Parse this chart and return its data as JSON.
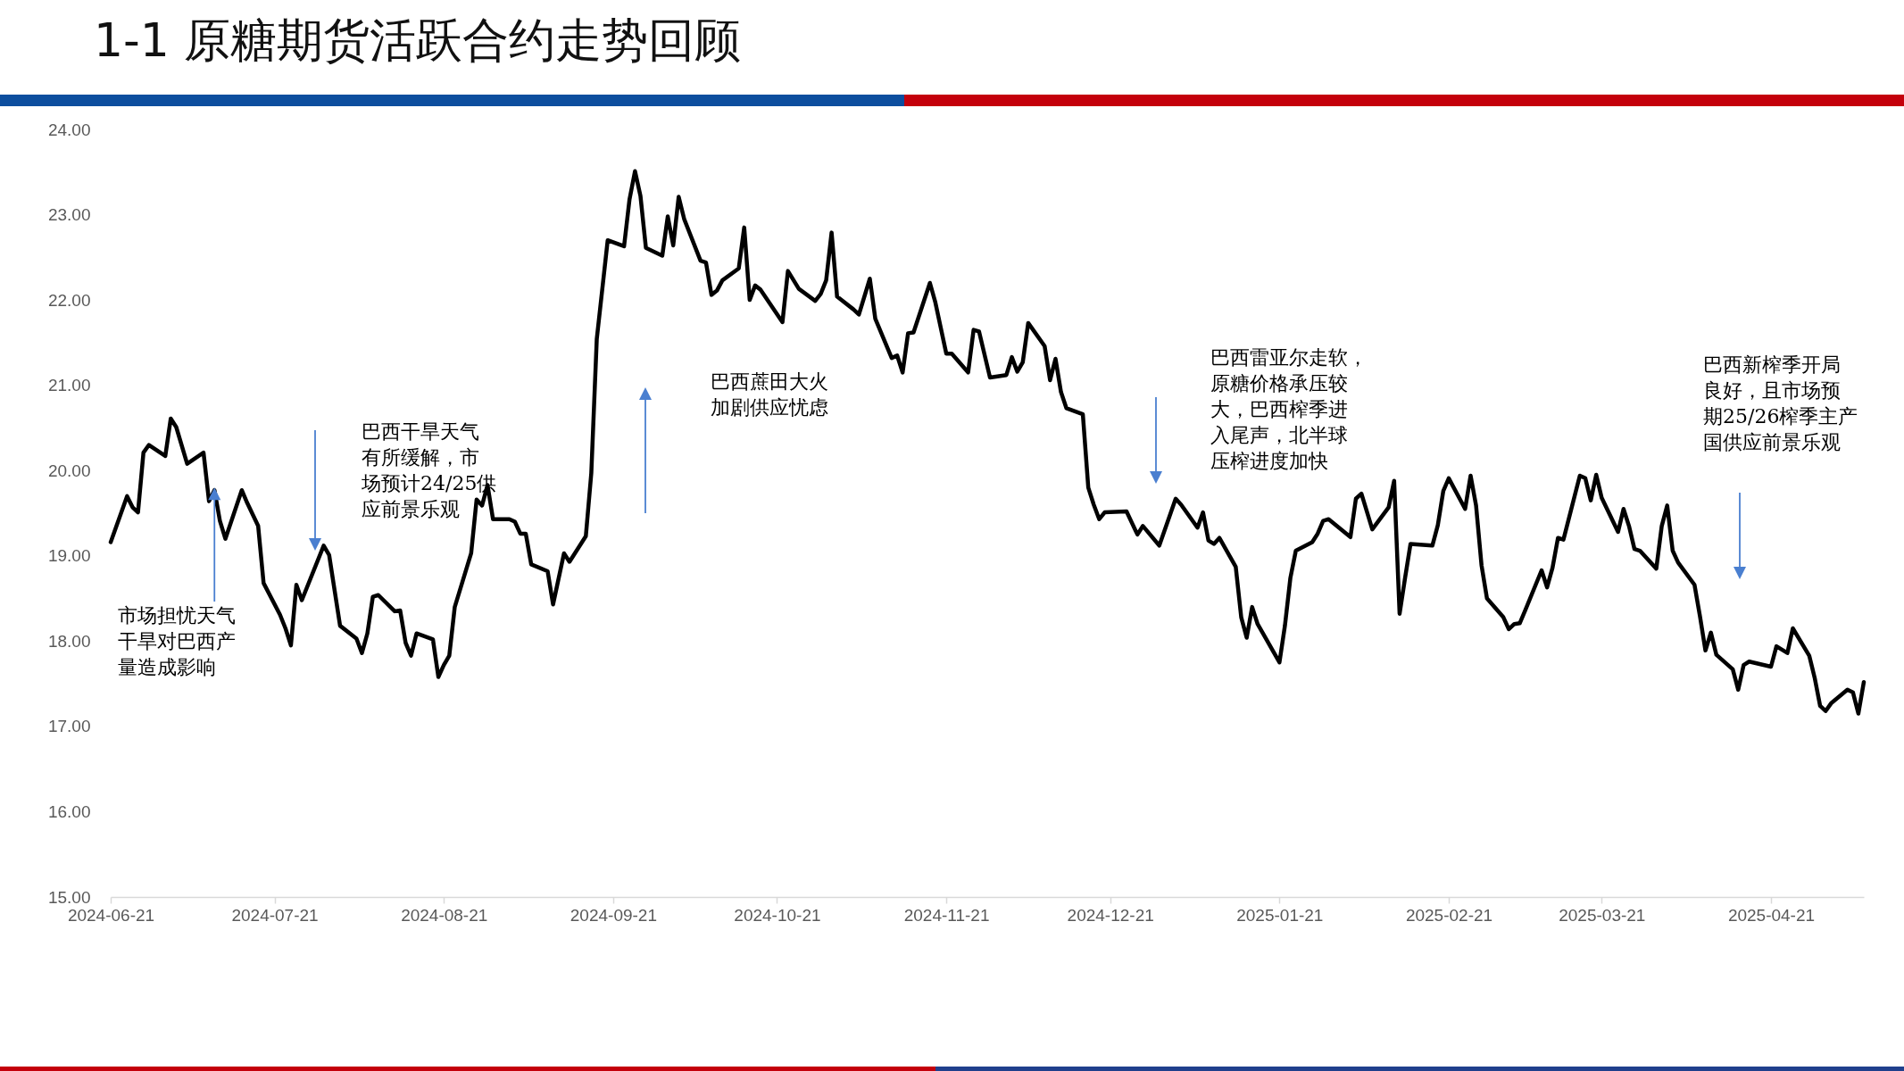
{
  "chart_data": {
    "type": "line",
    "title": "1-1 原糖期货活跃合约走势回顾",
    "color": "#000000",
    "x": [
      "2024-06-21",
      "2024-06-24",
      "2024-06-25",
      "2024-06-26",
      "2024-06-27",
      "2024-06-28",
      "2024-07-01",
      "2024-07-02",
      "2024-07-03",
      "2024-07-05",
      "2024-07-08",
      "2024-07-09",
      "2024-07-10",
      "2024-07-11",
      "2024-07-12",
      "2024-07-15",
      "2024-07-16",
      "2024-07-18",
      "2024-07-19",
      "2024-07-22",
      "2024-07-23",
      "2024-07-24",
      "2024-07-25",
      "2024-07-26",
      "2024-07-30",
      "2024-07-31",
      "2024-08-02",
      "2024-08-05",
      "2024-08-06",
      "2024-08-07",
      "2024-08-08",
      "2024-08-09",
      "2024-08-12",
      "2024-08-13",
      "2024-08-14",
      "2024-08-15",
      "2024-08-16",
      "2024-08-19",
      "2024-08-20",
      "2024-08-21",
      "2024-08-22",
      "2024-08-23",
      "2024-08-26",
      "2024-08-27",
      "2024-08-28",
      "2024-08-29",
      "2024-08-30",
      "2024-09-02",
      "2024-09-03",
      "2024-09-04",
      "2024-09-05",
      "2024-09-06",
      "2024-09-09",
      "2024-09-10",
      "2024-09-12",
      "2024-09-13",
      "2024-09-16",
      "2024-09-17",
      "2024-09-18",
      "2024-09-20",
      "2024-09-23",
      "2024-09-24",
      "2024-09-25",
      "2024-09-26",
      "2024-09-27",
      "2024-09-30",
      "2024-10-01",
      "2024-10-02",
      "2024-10-03",
      "2024-10-04",
      "2024-10-07",
      "2024-10-08",
      "2024-10-09",
      "2024-10-10",
      "2024-10-11",
      "2024-10-14",
      "2024-10-15",
      "2024-10-16",
      "2024-10-17",
      "2024-10-18",
      "2024-10-22",
      "2024-10-23",
      "2024-10-25",
      "2024-10-28",
      "2024-10-29",
      "2024-10-30",
      "2024-10-31",
      "2024-11-01",
      "2024-11-04",
      "2024-11-05",
      "2024-11-07",
      "2024-11-08",
      "2024-11-11",
      "2024-11-12",
      "2024-11-13",
      "2024-11-14",
      "2024-11-15",
      "2024-11-18",
      "2024-11-19",
      "2024-11-21",
      "2024-11-22",
      "2024-11-25",
      "2024-11-26",
      "2024-11-27",
      "2024-11-29",
      "2024-12-02",
      "2024-12-03",
      "2024-12-04",
      "2024-12-05",
      "2024-12-06",
      "2024-12-09",
      "2024-12-10",
      "2024-12-11",
      "2024-12-12",
      "2024-12-13",
      "2024-12-16",
      "2024-12-17",
      "2024-12-18",
      "2024-12-19",
      "2024-12-20",
      "2024-12-24",
      "2024-12-26",
      "2024-12-27",
      "2024-12-30",
      "2025-01-02",
      "2025-01-03",
      "2025-01-06",
      "2025-01-07",
      "2025-01-08",
      "2025-01-09",
      "2025-01-10",
      "2025-01-13",
      "2025-01-14",
      "2025-01-15",
      "2025-01-16",
      "2025-01-17",
      "2025-01-21",
      "2025-01-22",
      "2025-01-23",
      "2025-01-24",
      "2025-01-27",
      "2025-01-28",
      "2025-01-29",
      "2025-01-30",
      "2025-02-03",
      "2025-02-04",
      "2025-02-05",
      "2025-02-07",
      "2025-02-10",
      "2025-02-11",
      "2025-02-12",
      "2025-02-13",
      "2025-02-14",
      "2025-02-18",
      "2025-02-19",
      "2025-02-20",
      "2025-02-21",
      "2025-02-24",
      "2025-02-25",
      "2025-02-26",
      "2025-02-27",
      "2025-02-28",
      "2025-03-03",
      "2025-03-04",
      "2025-03-05",
      "2025-03-06",
      "2025-03-07",
      "2025-03-10",
      "2025-03-11",
      "2025-03-12",
      "2025-03-13",
      "2025-03-14",
      "2025-03-17",
      "2025-03-18",
      "2025-03-19",
      "2025-03-20",
      "2025-03-21",
      "2025-03-24",
      "2025-03-25",
      "2025-03-26",
      "2025-03-27",
      "2025-03-28",
      "2025-03-31",
      "2025-04-01",
      "2025-04-02",
      "2025-04-03",
      "2025-04-04",
      "2025-04-07",
      "2025-04-08",
      "2025-04-09",
      "2025-04-10",
      "2025-04-11",
      "2025-04-14",
      "2025-04-15",
      "2025-04-16",
      "2025-04-17",
      "2025-04-21",
      "2025-04-22",
      "2025-04-24",
      "2025-04-25",
      "2025-04-28",
      "2025-04-29",
      "2025-04-30",
      "2025-05-01",
      "2025-05-02",
      "2025-05-05",
      "2025-05-06",
      "2025-05-07",
      "2025-05-08"
    ],
    "values": [
      19.16,
      19.7,
      19.57,
      19.51,
      20.21,
      20.3,
      20.17,
      20.61,
      20.51,
      20.08,
      20.21,
      19.64,
      19.77,
      19.41,
      19.2,
      19.77,
      19.62,
      19.35,
      18.68,
      18.31,
      18.15,
      17.95,
      18.66,
      18.48,
      19.12,
      19.01,
      18.18,
      18.03,
      17.86,
      18.09,
      18.52,
      18.54,
      18.35,
      18.36,
      17.98,
      17.83,
      18.09,
      18.02,
      17.58,
      17.72,
      17.83,
      18.4,
      19.03,
      19.66,
      19.59,
      19.83,
      19.43,
      19.43,
      19.4,
      19.26,
      19.26,
      18.9,
      18.82,
      18.43,
      19.03,
      18.93,
      19.23,
      19.97,
      21.54,
      22.7,
      22.63,
      23.18,
      23.51,
      23.22,
      22.61,
      22.52,
      22.98,
      22.64,
      23.21,
      22.95,
      22.46,
      22.44,
      22.06,
      22.11,
      22.23,
      22.37,
      22.85,
      22.0,
      22.17,
      22.12,
      21.74,
      22.34,
      22.13,
      21.99,
      22.07,
      22.23,
      22.79,
      22.04,
      21.89,
      21.83,
      22.25,
      21.78,
      21.32,
      21.35,
      21.15,
      21.61,
      21.62,
      22.2,
      21.97,
      21.37,
      21.37,
      21.15,
      21.65,
      21.63,
      21.09,
      21.12,
      21.33,
      21.16,
      21.27,
      21.73,
      21.46,
      21.06,
      21.31,
      20.92,
      20.73,
      20.66,
      19.8,
      19.6,
      19.43,
      19.51,
      19.52,
      19.25,
      19.35,
      19.12,
      19.67,
      19.6,
      19.33,
      19.51,
      19.18,
      19.14,
      19.21,
      18.87,
      18.28,
      18.04,
      18.4,
      18.2,
      17.75,
      18.18,
      18.74,
      19.06,
      19.16,
      19.26,
      19.41,
      19.43,
      19.22,
      19.67,
      19.73,
      19.31,
      19.57,
      19.88,
      18.32,
      18.74,
      19.14,
      19.12,
      19.36,
      19.76,
      19.91,
      19.55,
      19.94,
      19.59,
      18.89,
      18.5,
      18.28,
      18.14,
      18.2,
      18.21,
      18.36,
      18.83,
      18.63,
      18.86,
      19.21,
      19.19,
      19.94,
      19.91,
      19.65,
      19.95,
      19.68,
      19.28,
      19.55,
      19.35,
      19.08,
      19.06,
      18.85,
      19.35,
      19.59,
      19.06,
      18.92,
      18.66,
      18.29,
      17.89,
      18.1,
      17.84,
      17.67,
      17.43,
      17.72,
      17.76,
      17.7,
      17.94,
      17.86,
      18.15,
      17.83,
      17.57,
      17.24,
      17.18,
      17.27,
      17.43,
      17.4,
      17.15,
      17.52
    ],
    "xlim": [
      "2024-06-21",
      "2025-05-08"
    ],
    "xticks": [
      "2024-06-21",
      "2024-07-21",
      "2024-08-21",
      "2024-09-21",
      "2024-10-21",
      "2024-11-21",
      "2024-12-21",
      "2025-01-21",
      "2025-02-21",
      "2025-03-21",
      "2025-04-21"
    ],
    "ylim": [
      15,
      24
    ],
    "yticks": [
      {
        "value": 15,
        "label": "15.00"
      },
      {
        "value": 16,
        "label": "16.00"
      },
      {
        "value": 17,
        "label": "17.00"
      },
      {
        "value": 18,
        "label": "18.00"
      },
      {
        "value": 19,
        "label": "19.00"
      },
      {
        "value": 20,
        "label": "20.00"
      },
      {
        "value": 21,
        "label": "21.00"
      },
      {
        "value": 22,
        "label": "22.00"
      },
      {
        "value": 23,
        "label": "23.00"
      },
      {
        "value": 24,
        "label": "24.00"
      }
    ],
    "annotations": [
      {
        "text": "市场担忧天气干旱对巴西产量造成影响",
        "x": "2024-07-10",
        "y": 19.8
      },
      "巴西干旱天气有所缓解，市场预计24/25供应前景乐观",
      "巴西蔗田大火加剧供应忧虑",
      "巴西雷亚尔走软，原糖价格承压较大，巴西榨季进入尾声，北半球压榨进度加快",
      "巴西新榨季开局良好，且市场预期25/26榨季主产国供应前景乐观"
    ]
  }
}
